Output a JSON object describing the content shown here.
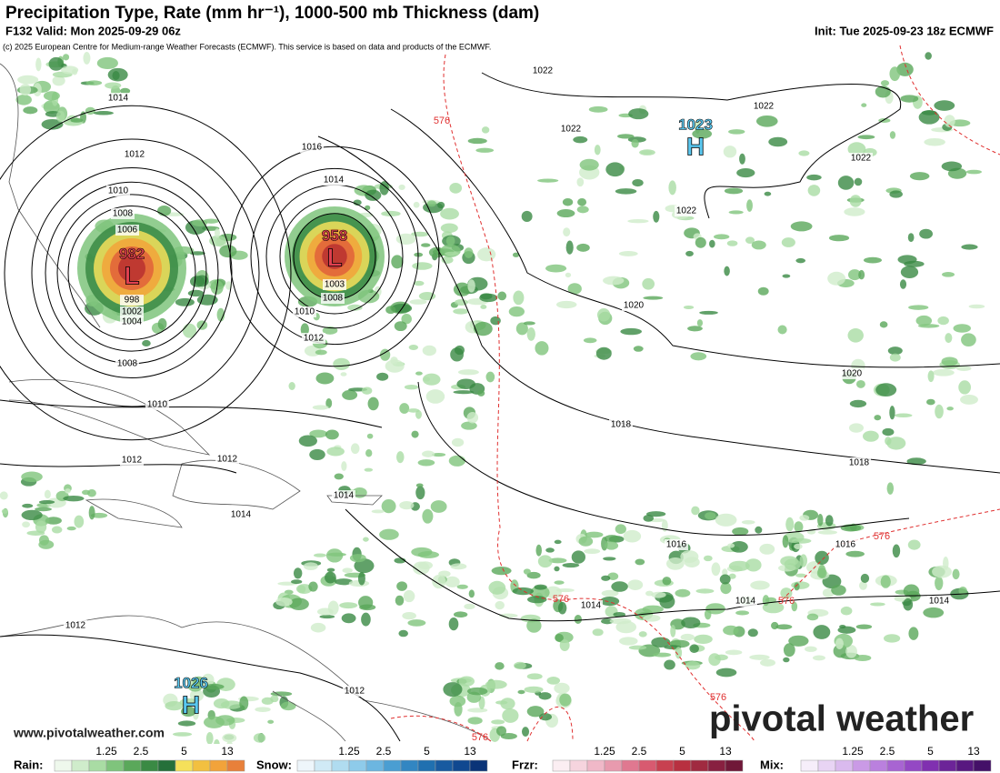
{
  "header": {
    "title": "Precipitation Type, Rate (mm hr⁻¹), 1000-500 mb Thickness (dam)",
    "valid": "F132 Valid: Mon 2025-09-29 06z",
    "init": "Init: Tue 2025-09-23 18z ECMWF",
    "credit": "(c) 2025 European Centre for Medium-range Weather Forecasts (ECMWF). This service is based on data and products of the ECMWF."
  },
  "map": {
    "centers": [
      {
        "pressure": "1023",
        "symbol": "H"
      },
      {
        "pressure": "982",
        "symbol": "L"
      },
      {
        "pressure": "958",
        "symbol": "L"
      },
      {
        "pressure": "1026",
        "symbol": "H"
      }
    ],
    "isobar_labels": [
      "1022",
      "1022",
      "1022",
      "1022",
      "1022",
      "1016",
      "1014",
      "1014",
      "1012",
      "1010",
      "1008",
      "1006",
      "998",
      "1002",
      "1004",
      "1008",
      "1010",
      "1012",
      "1012",
      "1014",
      "1014",
      "1003",
      "1008",
      "1010",
      "1012",
      "1020",
      "1020",
      "1018",
      "1018",
      "1016",
      "1016",
      "1014",
      "1014",
      "1014",
      "1012",
      "1012"
    ],
    "thickness_labels": [
      "576",
      "576",
      "576",
      "576",
      "576",
      "576"
    ]
  },
  "watermark": {
    "logo": "pivotal weather",
    "url": "www.pivotalweather.com"
  },
  "legend": [
    {
      "name": "Rain:",
      "ticks": [
        "1.25",
        "2.5",
        "5",
        "13"
      ]
    },
    {
      "name": "Snow:",
      "ticks": [
        "1.25",
        "2.5",
        "5",
        "13"
      ]
    },
    {
      "name": "Frzr:",
      "ticks": [
        "1.25",
        "2.5",
        "5",
        "13"
      ]
    },
    {
      "name": "Mix:",
      "ticks": [
        "1.25",
        "2.5",
        "5",
        "13"
      ]
    }
  ]
}
